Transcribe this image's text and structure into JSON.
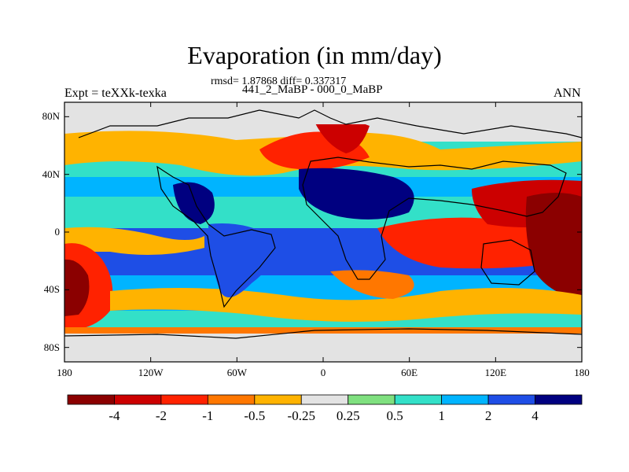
{
  "title": "Evaporation (in mm/day)",
  "stats_line": "rmsd= 1.87868 diff= 0.337317",
  "periods_line": "441_2_MaBP - 000_0_MaBP",
  "experiment_label": "Expt = teXXk-texka",
  "season_label": "ANN",
  "map": {
    "projection": "cylindrical equidistant",
    "lon_range": [
      -180,
      180
    ],
    "lat_range": [
      -90,
      90
    ],
    "lat_ticks": [
      {
        "value": 80,
        "label": "80N"
      },
      {
        "value": 40,
        "label": "40N"
      },
      {
        "value": 0,
        "label": "0"
      },
      {
        "value": -40,
        "label": "40S"
      },
      {
        "value": -80,
        "label": "80S"
      }
    ],
    "lon_ticks": [
      {
        "value": -180,
        "label": "180"
      },
      {
        "value": -120,
        "label": "120W"
      },
      {
        "value": -60,
        "label": "60W"
      },
      {
        "value": 0,
        "label": "0"
      },
      {
        "value": 60,
        "label": "60E"
      },
      {
        "value": 120,
        "label": "120E"
      },
      {
        "value": 180,
        "label": "180"
      }
    ]
  },
  "colorbar": {
    "colors": [
      "#8b0000",
      "#cc0000",
      "#ff2200",
      "#ff7700",
      "#ffb300",
      "#e3e3e3",
      "#7fe07f",
      "#33e0c8",
      "#00b4ff",
      "#1e4ee6",
      "#000080"
    ],
    "labels": [
      "-4",
      "-2",
      "-1",
      "-0.5",
      "-0.25",
      "0.25",
      "0.5",
      "1",
      "2",
      "4"
    ]
  }
}
